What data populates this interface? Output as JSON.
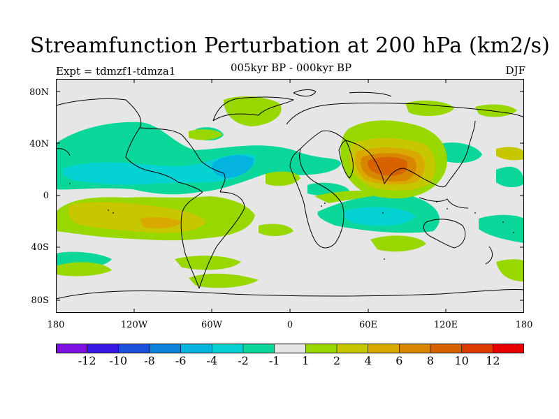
{
  "title": "Streamfunction Perturbation at 200 hPa (km2/s)",
  "expt": "Expt = tdmzf1-tdmza1",
  "subtitle": "005kyr BP - 000kyr BP",
  "season": "DJF",
  "lat_labels": [
    "80N",
    "40N",
    "0",
    "40S",
    "80S"
  ],
  "lon_labels": [
    "180",
    "120W",
    "60W",
    "0",
    "60E",
    "120E",
    "180"
  ],
  "colorbar": {
    "colors": [
      "#7d12e0",
      "#3718e4",
      "#1b4fdc",
      "#0c83dc",
      "#05b3df",
      "#05d3d3",
      "#0bd79a",
      "#e6e6e6",
      "#99d700",
      "#c7c700",
      "#d9a900",
      "#d88600",
      "#d76300",
      "#dc3b00",
      "#e60000"
    ],
    "labels": [
      "-12",
      "-10",
      "-8",
      "-6",
      "-4",
      "-2",
      "-1",
      "1",
      "2",
      "4",
      "6",
      "8",
      "10",
      "12"
    ]
  },
  "colors": {
    "background": "#e6e6e6",
    "neg1": "#0bd79a",
    "neg2": "#05d3d3",
    "neg4": "#05b3df",
    "pos1": "#99d700",
    "pos2": "#c7c700",
    "pos4": "#d9a900",
    "pos6": "#d88600",
    "pos8": "#d76300",
    "coast": "#000000"
  }
}
